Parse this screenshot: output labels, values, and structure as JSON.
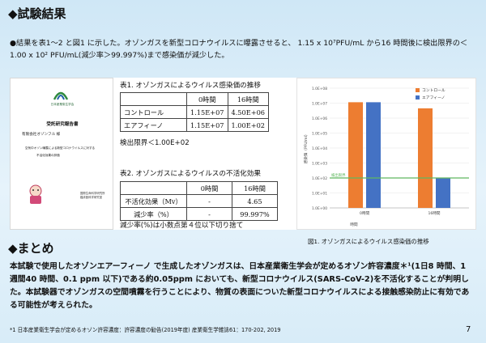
{
  "header": {
    "title": "◆試験結果"
  },
  "intro": {
    "text": "●結果を表1～2 と図1 に示した。オゾンガスを新型コロナウイルスに曝露させると、 1.15 x 10⁷PFU/mL から16 時間後に検出限界の＜1.00 x 10² PFU/mL(減少率＞99.997%)まで感染価が減少した。"
  },
  "report": {
    "org": "日本産業衛生学会",
    "title": "受託研究報告書",
    "to": "有限会社オゾンフル 様",
    "subtitle1": "空気中オゾン曝露による新型コロナウイルスに対する",
    "subtitle2": "不活化効果の評価",
    "side": "国際生命科学研究所 臨床医科学研究室"
  },
  "table1": {
    "caption": "表1. オゾンガスによるウイルス感染価の推移",
    "headers": [
      "",
      "0時間",
      "16時間"
    ],
    "rows": [
      [
        "コントロール",
        "1.15E+07",
        "4.50E+06"
      ],
      [
        "エアフィーノ",
        "1.15E+07",
        "1.00E+02"
      ]
    ],
    "note": "検出限界＜1.00E+02"
  },
  "table2": {
    "caption": "表2. オゾンガスによるウイルスの不活化効果",
    "headers": [
      "",
      "0時間",
      "16時間"
    ],
    "rows": [
      [
        "不活化効果（Mv）",
        "-",
        "4.65"
      ],
      [
        "減少率（%）",
        "-",
        "99.997%"
      ]
    ],
    "note": "減少率(%)は小数点第４位以下切り捨て"
  },
  "chart_data": {
    "type": "bar",
    "categories": [
      "0時間",
      "16時間"
    ],
    "series": [
      {
        "name": "コントロール",
        "values": [
          11500000,
          4500000
        ],
        "color": "#ed7d31"
      },
      {
        "name": "エアフィーノ",
        "values": [
          11500000,
          100
        ],
        "color": "#4472c4"
      }
    ],
    "ylabel": "感染価（PFU/ml）",
    "xlabel": "時間",
    "yscale": "log",
    "ylim": [
      1,
      100000000
    ],
    "yticks": [
      "1.0E+00",
      "1.0E+01",
      "1.0E+02",
      "1.0E+03",
      "1.0E+04",
      "1.0E+05",
      "1.0E+06",
      "1.0E+07",
      "1.0E+08"
    ],
    "reference_line": {
      "label": "検出限界",
      "value": 100,
      "color": "#5fb85f"
    },
    "legend_position": "top-right",
    "grid": true
  },
  "figure_caption": "図1. オゾンガスによるウイルス感染価の推移",
  "summary_header": "◆まとめ",
  "summary": "本試験で使用したオゾンエアーフィーノ で生成したオゾンガスは、日本産業衛生学会が定めるオゾン許容濃度＊¹(1日8 時間、1 週間40 時間、0.1 ppm 以下)である約0.05ppm においても、新型コロナウイルス(SARS-CoV-2)を不活化することが判明した。本試験器でオゾンガスの空間噴霧を行うことにより、物質の表面についた新型コロナウイルスによる接触感染防止に有効である可能性が考えられた。",
  "footnote": "*1 日本産業衛生学会が定めるオゾン許容濃度：許容濃度の勧告(2019年度) 産業衛生学雑誌61：170-202, 2019",
  "page_number": "7"
}
